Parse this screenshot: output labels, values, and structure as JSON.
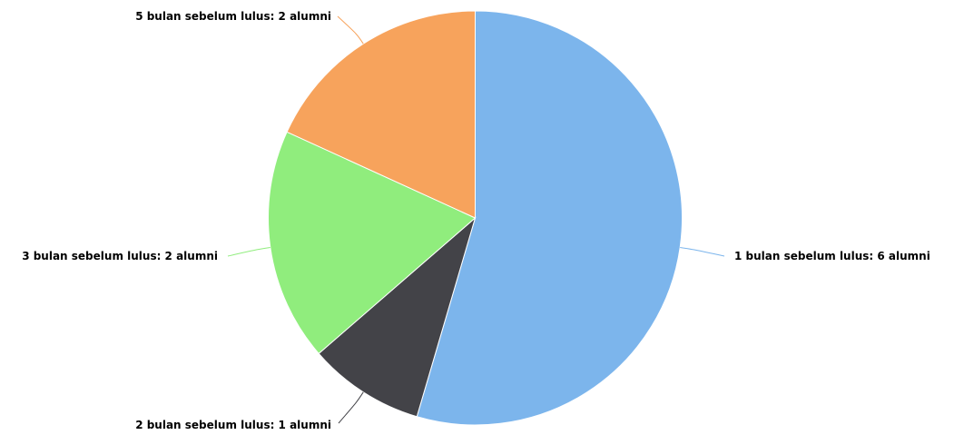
{
  "chart_data": {
    "type": "pie",
    "title": "",
    "slices": [
      {
        "label": "1 bulan sebelum lulus: 6 alumni",
        "category": "1 bulan sebelum lulus",
        "value": 6,
        "color": "#7cb5ec"
      },
      {
        "label": "2 bulan sebelum lulus: 1 alumni",
        "category": "2 bulan sebelum lulus",
        "value": 1,
        "color": "#434348"
      },
      {
        "label": "3 bulan sebelum lulus: 2 alumni",
        "category": "3 bulan sebelum lulus",
        "value": 2,
        "color": "#90ed7d"
      },
      {
        "label": "5 bulan sebelum lulus: 2 alumni",
        "category": "5 bulan sebelum lulus",
        "value": 2,
        "color": "#f7a35c"
      }
    ],
    "legend": "none",
    "data_labels": "outside"
  }
}
